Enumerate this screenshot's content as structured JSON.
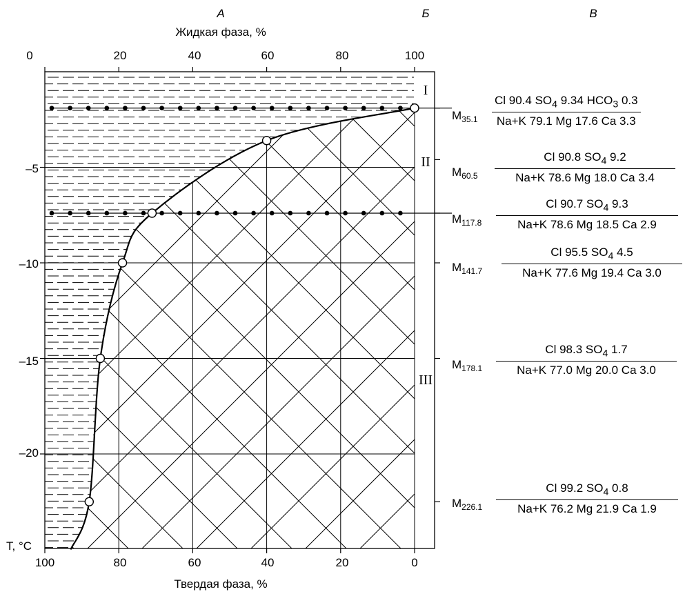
{
  "column_headers": [
    "А",
    "Б",
    "В"
  ],
  "top_axis_label": "Жидкая фаза, %",
  "top_ticks": [
    "0",
    "20",
    "40",
    "60",
    "80",
    "100"
  ],
  "bottom_axis_label": "Твердая фаза, %",
  "bottom_ticks": [
    "100",
    "80",
    "60",
    "40",
    "20",
    "0"
  ],
  "y_axis_label": "T, °C",
  "y_ticks": [
    "–5",
    "–10",
    "–15",
    "–20"
  ],
  "zones": [
    "I",
    "II",
    "III"
  ],
  "chart_data": {
    "type": "line",
    "xlabel_top": "Жидкая фаза, %",
    "xlabel_bottom": "Твердая фаза, %",
    "ylabel": "T, °C",
    "xlim": [
      0,
      100
    ],
    "ylim": [
      -25,
      0
    ],
    "grid": true,
    "curve_points": [
      {
        "liquid": 7,
        "t": -25.0
      },
      {
        "liquid": 12,
        "t": -22.5
      },
      {
        "liquid": 15,
        "t": -15.0
      },
      {
        "liquid": 21,
        "t": -10.0
      },
      {
        "liquid": 29,
        "t": -7.4
      },
      {
        "liquid": 60,
        "t": -3.6
      },
      {
        "liquid": 100,
        "t": -1.9
      }
    ],
    "isotherms_dotted": [
      -1.9,
      -7.4
    ],
    "sample_temperatures": [
      -1.9,
      -4.6,
      -7.4,
      -10.0,
      -15.0,
      -22.5
    ]
  },
  "formulas": [
    {
      "m": "M",
      "m_sub": "35.1",
      "numerator": [
        "Cl 90.4 SO",
        "4",
        " 9.34 HCO",
        "3",
        " 0.3"
      ],
      "denominator": "Na+K 79.1 Mg 17.6 Ca 3.3"
    },
    {
      "m": "M",
      "m_sub": "60.5",
      "numerator": [
        "Cl 90.8 SO",
        "4",
        " 9.2",
        "",
        ""
      ],
      "denominator": "Na+K 78.6 Mg 18.0 Ca 3.4"
    },
    {
      "m": "M",
      "m_sub": "117.8",
      "numerator": [
        "Cl 90.7 SO",
        "4",
        " 9.3",
        "",
        ""
      ],
      "denominator": "Na+K 78.6 Mg 18.5 Ca 2.9"
    },
    {
      "m": "M",
      "m_sub": "141.7",
      "numerator": [
        "Cl 95.5 SO",
        "4",
        " 4.5",
        "",
        ""
      ],
      "denominator": "Na+K 77.6 Mg 19.4 Ca 3.0"
    },
    {
      "m": "M",
      "m_sub": "178.1",
      "numerator": [
        "Cl 98.3 SO",
        "4",
        " 1.7",
        "",
        ""
      ],
      "denominator": "Na+K 77.0 Mg 20.0 Ca 3.0"
    },
    {
      "m": "M",
      "m_sub": "226.1",
      "numerator": [
        "Cl 99.2 SO",
        "4",
        " 0.8",
        "",
        ""
      ],
      "denominator": "Na+K 76.2 Mg 21.9 Ca 1.9"
    }
  ]
}
